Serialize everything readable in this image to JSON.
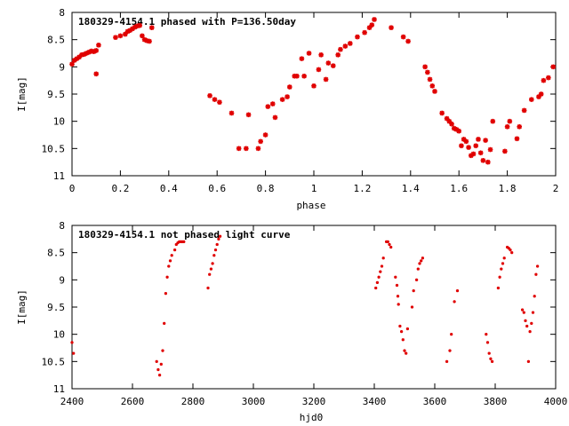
{
  "chart_data": [
    {
      "type": "scatter",
      "title": "180329-4154.1 phased with P=136.50day",
      "xlabel": "phase",
      "ylabel": "I[mag]",
      "xlim": [
        0,
        2
      ],
      "ylim": [
        8,
        11
      ],
      "y_inverted": true,
      "grid": false,
      "x_ticks": [
        "0",
        "0.2",
        "0.4",
        "0.6",
        "0.8",
        "1",
        "1.2",
        "1.4",
        "1.6",
        "1.8",
        "2"
      ],
      "y_ticks": [
        "8",
        "8.5",
        "9",
        "9.5",
        "10",
        "10.5",
        "11"
      ],
      "marker_color": "#e00000",
      "series": [
        {
          "x": [
            0.0,
            0.01,
            0.02,
            0.03,
            0.04,
            0.05,
            0.06,
            0.07,
            0.08,
            0.09,
            0.1,
            0.11,
            0.1,
            0.18,
            0.2,
            0.22,
            0.23,
            0.24,
            0.25,
            0.26,
            0.27,
            0.28,
            0.29,
            0.3,
            0.31,
            0.32,
            0.33,
            0.57,
            0.59,
            0.61,
            0.66,
            0.69,
            0.72,
            0.73,
            0.77,
            0.78,
            0.8,
            0.81,
            0.83,
            0.84,
            0.87,
            0.89,
            0.9,
            0.92,
            0.93,
            0.95,
            0.96,
            0.98,
            1.0,
            1.02,
            1.03,
            1.05,
            1.06,
            1.08,
            1.1,
            1.11,
            1.13,
            1.15,
            1.18,
            1.21,
            1.23,
            1.24,
            1.25,
            1.32,
            1.37,
            1.39,
            1.46,
            1.47,
            1.48,
            1.49,
            1.5,
            1.53,
            1.55,
            1.56,
            1.57,
            1.58,
            1.59,
            1.6,
            1.61,
            1.62,
            1.63,
            1.64,
            1.65,
            1.66,
            1.67,
            1.68,
            1.69,
            1.7,
            1.71,
            1.72,
            1.73,
            1.74,
            1.79,
            1.8,
            1.81,
            1.84,
            1.85,
            1.87,
            1.9,
            1.93,
            1.94,
            1.95,
            1.97,
            1.99
          ],
          "y": [
            8.95,
            8.88,
            8.85,
            8.82,
            8.78,
            8.77,
            8.75,
            8.73,
            8.71,
            8.72,
            8.7,
            8.6,
            9.13,
            8.46,
            8.43,
            8.4,
            8.35,
            8.33,
            8.3,
            8.27,
            8.25,
            8.24,
            8.43,
            8.5,
            8.52,
            8.53,
            8.28,
            9.53,
            9.6,
            9.65,
            9.85,
            10.5,
            10.5,
            9.88,
            10.5,
            10.37,
            10.25,
            9.73,
            9.68,
            9.93,
            9.6,
            9.55,
            9.37,
            9.17,
            9.17,
            8.85,
            9.17,
            8.75,
            9.35,
            9.05,
            8.78,
            9.23,
            8.93,
            8.98,
            8.78,
            8.68,
            8.62,
            8.57,
            8.45,
            8.37,
            8.28,
            8.23,
            8.13,
            8.28,
            8.45,
            8.53,
            9.0,
            9.1,
            9.23,
            9.35,
            9.45,
            9.85,
            9.95,
            10.0,
            10.05,
            10.13,
            10.15,
            10.18,
            10.45,
            10.33,
            10.37,
            10.48,
            10.63,
            10.6,
            10.45,
            10.33,
            10.58,
            10.72,
            10.35,
            10.75,
            10.52,
            10.0,
            10.55,
            10.1,
            10.0,
            10.32,
            10.1,
            9.8,
            9.6,
            9.55,
            9.5,
            9.25,
            9.2,
            9.0
          ]
        }
      ]
    },
    {
      "type": "scatter",
      "title": "180329-4154.1 not phased light curve",
      "xlabel": "hjd0",
      "ylabel": "I[mag]",
      "xlim": [
        2400,
        4000
      ],
      "ylim": [
        8,
        11
      ],
      "y_inverted": true,
      "grid": false,
      "x_ticks": [
        "2400",
        "2600",
        "2800",
        "3000",
        "3200",
        "3400",
        "3600",
        "3800",
        "4000"
      ],
      "y_ticks": [
        "8",
        "8.5",
        "9",
        "9.5",
        "10",
        "10.5",
        "11"
      ],
      "marker_color": "#e00000",
      "series": [
        {
          "x": [
            2400,
            2405,
            2680,
            2685,
            2690,
            2695,
            2700,
            2705,
            2710,
            2715,
            2720,
            2725,
            2730,
            2740,
            2745,
            2750,
            2755,
            2760,
            2765,
            2770,
            2850,
            2855,
            2860,
            2865,
            2870,
            2875,
            2880,
            2885,
            2890,
            3405,
            3410,
            3415,
            3420,
            3425,
            3430,
            3440,
            3445,
            3450,
            3455,
            3470,
            3475,
            3478,
            3480,
            3485,
            3490,
            3495,
            3500,
            3505,
            3510,
            3525,
            3530,
            3540,
            3545,
            3550,
            3555,
            3560,
            3640,
            3650,
            3655,
            3665,
            3675,
            3770,
            3775,
            3780,
            3785,
            3790,
            3810,
            3815,
            3820,
            3825,
            3830,
            3840,
            3845,
            3850,
            3855,
            3890,
            3895,
            3900,
            3905,
            3910,
            3915,
            3920,
            3925,
            3930,
            3935,
            3940
          ],
          "y": [
            10.15,
            10.35,
            10.5,
            10.65,
            10.75,
            10.55,
            10.3,
            9.8,
            9.25,
            8.95,
            8.75,
            8.65,
            8.55,
            8.45,
            8.35,
            8.32,
            8.3,
            8.3,
            8.3,
            8.3,
            9.15,
            8.9,
            8.8,
            8.7,
            8.55,
            8.45,
            8.35,
            8.25,
            8.2,
            9.15,
            9.05,
            8.95,
            8.85,
            8.75,
            8.6,
            8.3,
            8.3,
            8.35,
            8.4,
            8.95,
            9.1,
            9.3,
            9.45,
            9.85,
            9.95,
            10.1,
            10.3,
            10.35,
            9.9,
            9.5,
            9.2,
            9.0,
            8.8,
            8.7,
            8.65,
            8.6,
            10.5,
            10.3,
            10.0,
            9.4,
            9.2,
            10.0,
            10.15,
            10.35,
            10.45,
            10.5,
            9.15,
            8.95,
            8.8,
            8.7,
            8.6,
            8.4,
            8.42,
            8.45,
            8.5,
            9.55,
            9.6,
            9.75,
            9.85,
            10.5,
            9.95,
            9.8,
            9.6,
            9.3,
            8.9,
            8.75
          ]
        }
      ]
    }
  ]
}
